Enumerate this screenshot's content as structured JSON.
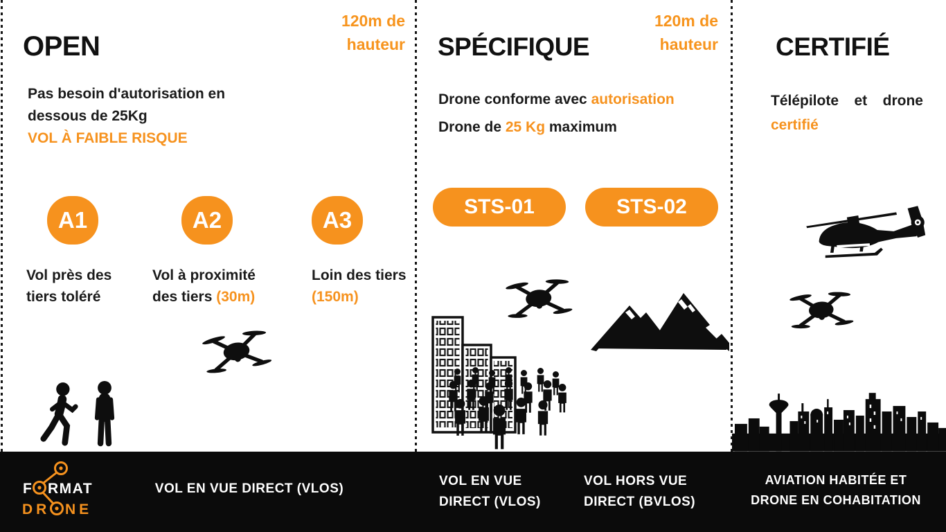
{
  "colors": {
    "accent_fill": "#F6921E",
    "accent_text": "#F7941D",
    "ink": "#151515",
    "footer_bg": "#0B0B0B",
    "text_on_dark": "#FFFFFF"
  },
  "panels": {
    "open": {
      "title": "OPEN",
      "height_note": "120m de\nhauteur",
      "description": [
        [
          {
            "t": "Pas besoin d'autorisation en",
            "c": "d"
          }
        ],
        [
          {
            "t": "dessous de 25Kg",
            "c": "d"
          }
        ],
        [
          {
            "t": "VOL À FAIBLE RISQUE",
            "c": "a"
          }
        ]
      ],
      "badges": [
        {
          "label": "A1",
          "caption": [
            {
              "t": "Vol près des tiers toléré",
              "c": "d"
            }
          ]
        },
        {
          "label": "A2",
          "caption": [
            {
              "t": "Vol à proximité des tiers ",
              "c": "d"
            },
            {
              "t": "(30m)",
              "c": "a"
            }
          ]
        },
        {
          "label": "A3",
          "caption": [
            {
              "t": "Loin des tiers ",
              "c": "d"
            },
            {
              "t": "(150m)",
              "c": "a"
            }
          ]
        }
      ],
      "footer_label": "VOL EN VUE DIRECT (VLOS)"
    },
    "specifique": {
      "title": "SPÉCIFIQUE",
      "height_note": "120m de\nhauteur",
      "description": [
        [
          {
            "t": "Drone conforme avec ",
            "c": "d"
          },
          {
            "t": "autorisation",
            "c": "a"
          }
        ],
        [
          {
            "t": "Drone de ",
            "c": "d"
          },
          {
            "t": "25 Kg",
            "c": "a"
          },
          {
            "t": " maximum",
            "c": "d"
          }
        ]
      ],
      "badges": [
        {
          "label": "STS-01"
        },
        {
          "label": "STS-02"
        }
      ],
      "footer_labels": [
        "VOL EN VUE\nDIRECT (VLOS)",
        "VOL HORS VUE\nDIRECT (BVLOS)"
      ]
    },
    "certifie": {
      "title": "CERTIFIÉ",
      "description": [
        [
          {
            "t": "Télépilote et drone",
            "c": "d"
          }
        ],
        [
          {
            "t": "certifié",
            "c": "a"
          }
        ]
      ],
      "footer_label": "AVIATION HABITÉE ET\nDRONE EN COHABITATION"
    }
  },
  "logo": {
    "line1_pre": "F",
    "line1_post": "RMAT",
    "line2_pre": "DR",
    "line2_post": "NE"
  }
}
